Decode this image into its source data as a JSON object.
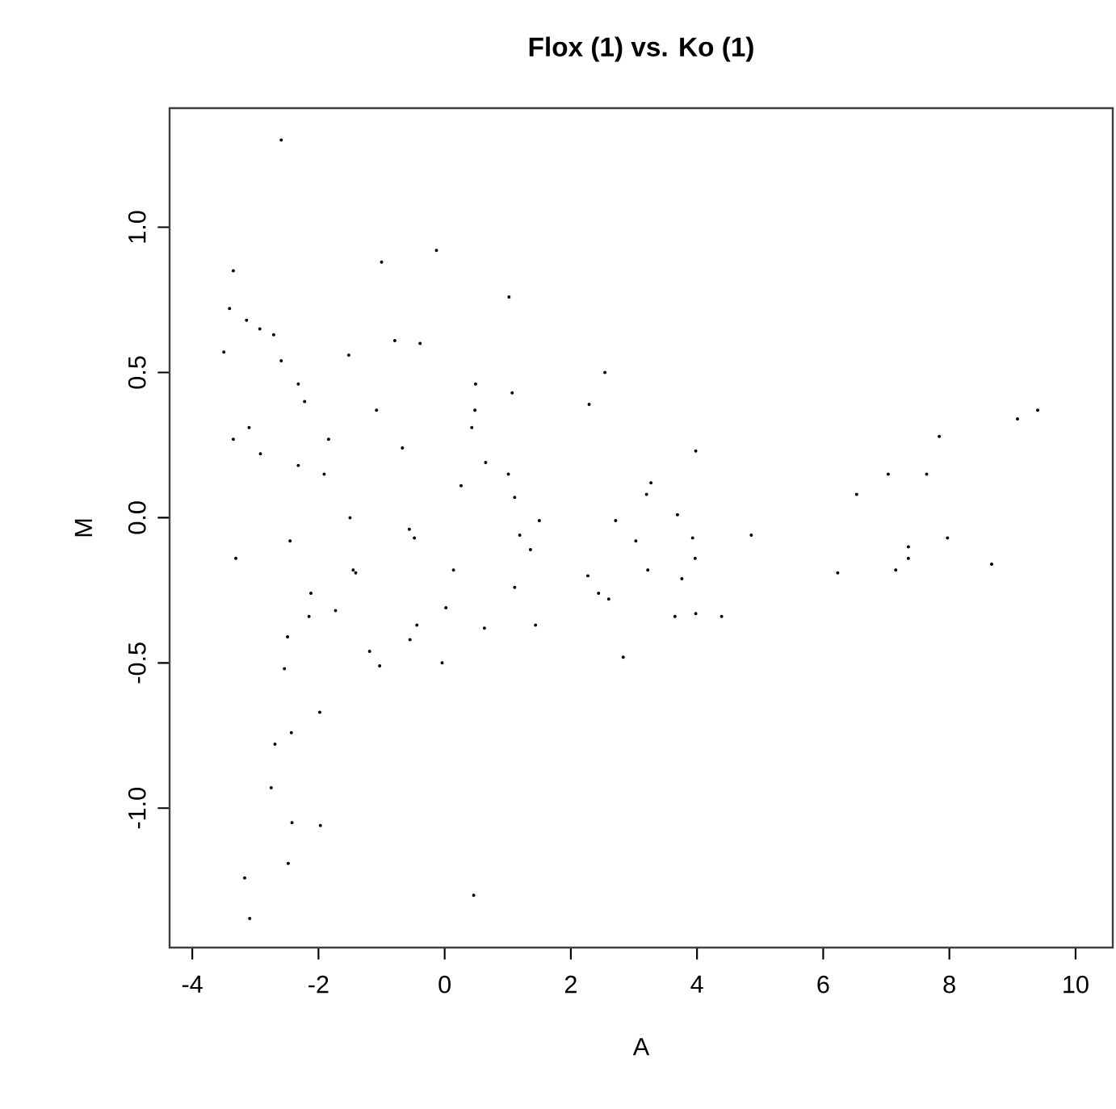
{
  "chart_data": {
    "type": "scatter",
    "title": "Flox (1) vs. Ko (1)",
    "xlabel": "A",
    "ylabel": "M",
    "xlim": [
      -4.36,
      10.59
    ],
    "ylim": [
      -1.48,
      1.41
    ],
    "xticks": [
      -4,
      -2,
      0,
      2,
      4,
      6,
      8,
      10
    ],
    "yticks": [
      {
        "value": -1,
        "label": "-1.0"
      },
      {
        "value": -0.5,
        "label": "-0.5"
      },
      {
        "value": 0,
        "label": "0.0"
      },
      {
        "value": 0.5,
        "label": "0.5"
      },
      {
        "value": 1,
        "label": "1.0"
      }
    ],
    "grid": false,
    "series": [
      {
        "color": "#000000",
        "x": [
          -2.59,
          -3.35,
          -1.0,
          -0.13,
          1.02,
          -3.41,
          -3.14,
          -2.93,
          -2.71,
          -3.5,
          -2.59,
          -1.52,
          -0.79,
          -0.39,
          2.54,
          -2.32,
          -2.22,
          -1.08,
          0.49,
          1.07,
          0.48,
          2.29,
          -3.1,
          -3.35,
          -1.84,
          -2.92,
          -0.67,
          0.43,
          -2.32,
          -1.91,
          0.65,
          1.01,
          0.26,
          1.11,
          -1.5,
          1.5,
          2.71,
          -0.56,
          -0.48,
          1.19,
          -2.45,
          3.03,
          1.36,
          -3.31,
          -1.45,
          -1.41,
          0.14,
          1.11,
          2.27,
          2.44,
          2.6,
          -2.12,
          -2.15,
          -1.73,
          0.02,
          -0.44,
          -0.55,
          0.63,
          1.44,
          -2.49,
          -1.19,
          -1.03,
          -0.04,
          -2.54,
          2.83,
          -1.98,
          -2.43,
          -2.69,
          -2.75,
          -2.42,
          -1.97,
          -2.48,
          -3.17,
          0.46,
          -3.09,
          3.98,
          3.27,
          3.2,
          3.69,
          3.93,
          4.86,
          3.97,
          3.22,
          3.76,
          3.65,
          3.98,
          4.39,
          6.23,
          6.53,
          7.03,
          7.64,
          7.84,
          9.08,
          9.4,
          7.97,
          7.35,
          7.35,
          7.15,
          8.67
        ],
        "values": [
          1.3,
          0.85,
          0.88,
          0.92,
          0.76,
          0.72,
          0.68,
          0.65,
          0.63,
          0.57,
          0.54,
          0.56,
          0.61,
          0.6,
          0.5,
          0.46,
          0.4,
          0.37,
          0.46,
          0.43,
          0.37,
          0.39,
          0.31,
          0.27,
          0.27,
          0.22,
          0.24,
          0.31,
          0.18,
          0.15,
          0.19,
          0.15,
          0.11,
          0.07,
          0.0,
          -0.01,
          -0.01,
          -0.04,
          -0.07,
          -0.06,
          -0.08,
          -0.08,
          -0.11,
          -0.14,
          -0.18,
          -0.19,
          -0.18,
          -0.24,
          -0.2,
          -0.26,
          -0.28,
          -0.26,
          -0.34,
          -0.32,
          -0.31,
          -0.37,
          -0.42,
          -0.38,
          -0.37,
          -0.41,
          -0.46,
          -0.51,
          -0.5,
          -0.52,
          -0.48,
          -0.67,
          -0.74,
          -0.78,
          -0.93,
          -1.05,
          -1.06,
          -1.19,
          -1.24,
          -1.3,
          -1.38,
          0.23,
          0.12,
          0.08,
          0.01,
          -0.07,
          -0.06,
          -0.14,
          -0.18,
          -0.21,
          -0.34,
          -0.33,
          -0.34,
          -0.19,
          0.08,
          0.15,
          0.15,
          0.28,
          0.34,
          0.37,
          -0.07,
          -0.1,
          -0.14,
          -0.18,
          -0.16
        ]
      }
    ]
  }
}
